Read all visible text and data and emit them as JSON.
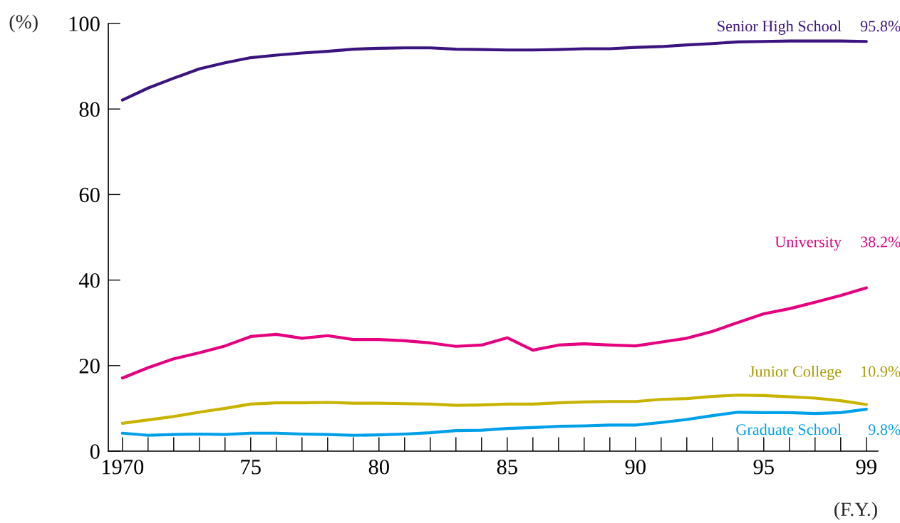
{
  "chart_data": {
    "type": "line",
    "xlabel": "(F.Y.)",
    "ylabel": "(%)",
    "x": [
      1970,
      1971,
      1972,
      1973,
      1974,
      1975,
      1976,
      1977,
      1978,
      1979,
      1980,
      1981,
      1982,
      1983,
      1984,
      1985,
      1986,
      1987,
      1988,
      1989,
      1990,
      1991,
      1992,
      1993,
      1994,
      1995,
      1996,
      1997,
      1998,
      1999
    ],
    "series": [
      {
        "name": "Senior High School",
        "color": "#3b1480",
        "values": [
          82.1,
          84.9,
          87.2,
          89.4,
          90.8,
          92.0,
          92.6,
          93.1,
          93.5,
          94.0,
          94.2,
          94.3,
          94.3,
          94.0,
          93.9,
          93.8,
          93.8,
          93.9,
          94.1,
          94.1,
          94.4,
          94.6,
          95.0,
          95.3,
          95.7,
          95.8,
          95.9,
          95.9,
          95.9,
          95.8
        ],
        "value_labels": [
          null,
          null,
          null,
          null,
          null,
          null,
          null,
          null,
          null,
          null,
          null,
          null,
          null,
          null,
          null,
          null,
          null,
          null,
          null,
          null,
          null,
          null,
          null,
          null,
          null,
          null,
          null,
          null,
          null,
          "95.8%"
        ]
      },
      {
        "name": "University",
        "color": "#e4007f",
        "values": [
          17.1,
          19.5,
          21.6,
          23.0,
          24.6,
          26.8,
          27.3,
          26.4,
          27.0,
          26.1,
          26.1,
          25.8,
          25.3,
          24.5,
          24.8,
          26.5,
          23.6,
          24.8,
          25.1,
          24.8,
          24.6,
          25.5,
          26.4,
          28.0,
          30.1,
          32.1,
          33.3,
          34.8,
          36.4,
          38.2
        ],
        "value_labels": [
          null,
          null,
          null,
          null,
          null,
          null,
          null,
          null,
          null,
          null,
          null,
          null,
          null,
          null,
          null,
          null,
          null,
          null,
          null,
          null,
          null,
          null,
          null,
          null,
          null,
          null,
          null,
          null,
          null,
          "38.2%"
        ]
      },
      {
        "name": "Junior College",
        "color": "#c8b400",
        "values": [
          6.5,
          7.3,
          8.1,
          9.1,
          10.0,
          11.0,
          11.3,
          11.3,
          11.4,
          11.2,
          11.2,
          11.1,
          11.0,
          10.7,
          10.8,
          11.0,
          11.0,
          11.3,
          11.5,
          11.6,
          11.6,
          12.1,
          12.3,
          12.8,
          13.1,
          13.0,
          12.7,
          12.4,
          11.8,
          10.9
        ],
        "value_labels": [
          null,
          null,
          null,
          null,
          null,
          null,
          null,
          null,
          null,
          null,
          null,
          null,
          null,
          null,
          null,
          null,
          null,
          null,
          null,
          null,
          null,
          null,
          null,
          null,
          null,
          null,
          null,
          null,
          null,
          "10.9%"
        ]
      },
      {
        "name": "Graduate School",
        "color": "#00a0e9",
        "values": [
          4.2,
          3.7,
          3.9,
          4.0,
          3.9,
          4.2,
          4.2,
          4.0,
          3.9,
          3.7,
          3.8,
          4.0,
          4.3,
          4.8,
          4.9,
          5.3,
          5.5,
          5.8,
          5.9,
          6.1,
          6.1,
          6.7,
          7.4,
          8.3,
          9.1,
          9.0,
          9.0,
          8.8,
          9.0,
          9.8
        ],
        "value_labels": [
          null,
          null,
          null,
          null,
          null,
          null,
          null,
          null,
          null,
          null,
          null,
          null,
          null,
          null,
          null,
          null,
          null,
          null,
          null,
          null,
          null,
          null,
          null,
          null,
          null,
          null,
          null,
          null,
          null,
          "9.8%"
        ]
      }
    ],
    "xlim": [
      1969.45,
      1999.45
    ],
    "xticks": [
      {
        "value": 1970,
        "label": "1970"
      },
      {
        "value": 1975,
        "label": "75"
      },
      {
        "value": 1980,
        "label": "80"
      },
      {
        "value": 1985,
        "label": "85"
      },
      {
        "value": 1990,
        "label": "90"
      },
      {
        "value": 1995,
        "label": "95"
      },
      {
        "value": 1999,
        "label": "99"
      }
    ],
    "ylim": [
      0,
      100
    ],
    "yticks": [
      0,
      20,
      40,
      60,
      80,
      100
    ],
    "grid": false,
    "legend": false,
    "marker": "none",
    "line_style": "solid"
  }
}
